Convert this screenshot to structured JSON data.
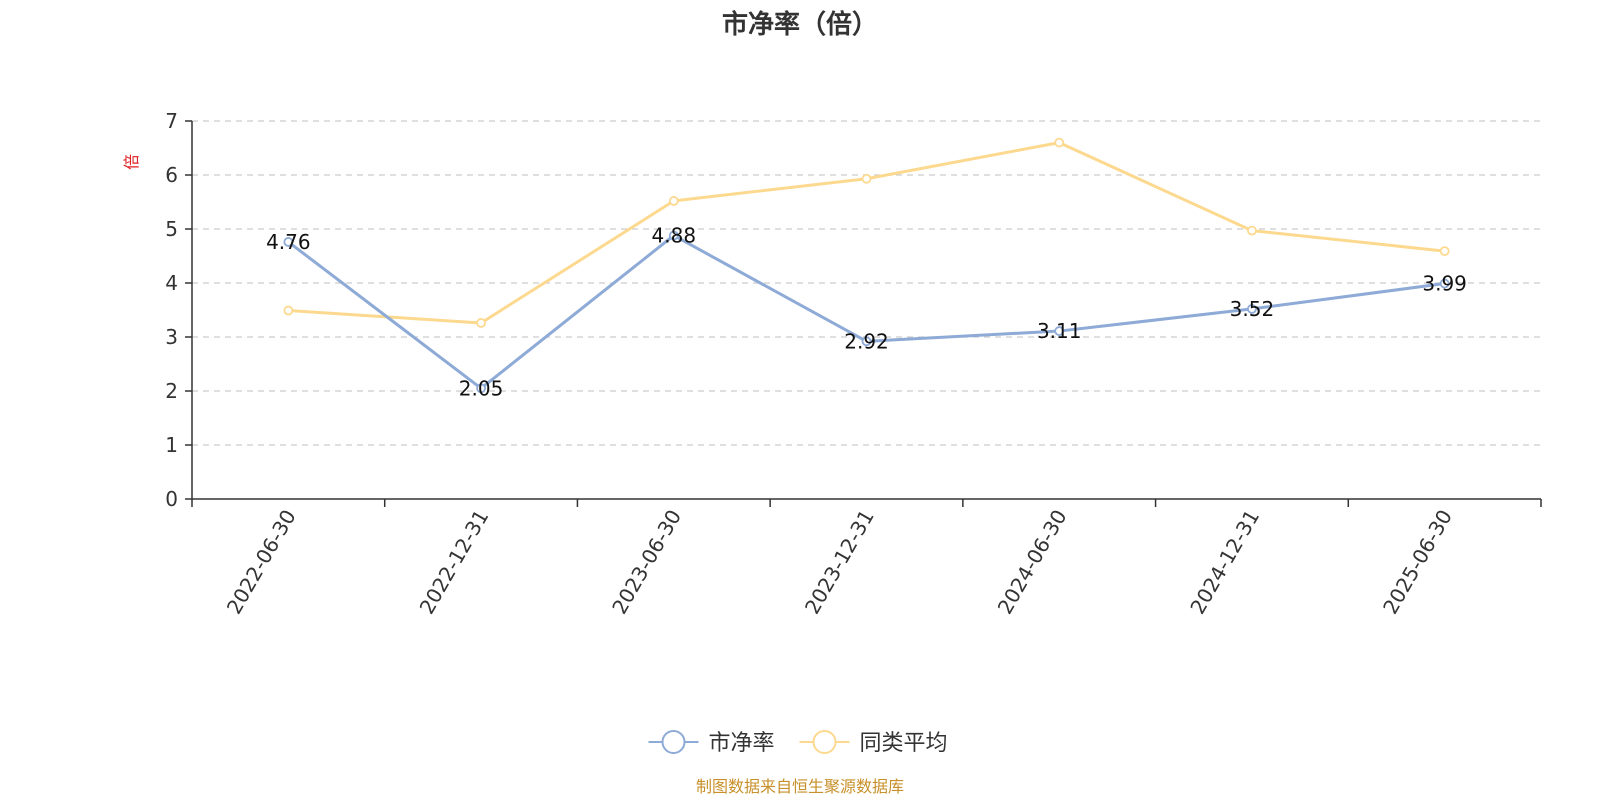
{
  "chart_data": {
    "type": "line",
    "title": "市净率（倍）",
    "ylabel": "倍",
    "categories": [
      "2022-06-30",
      "2022-12-31",
      "2023-06-30",
      "2023-12-31",
      "2024-06-30",
      "2024-12-31",
      "2025-06-30"
    ],
    "ylim": [
      0,
      7
    ],
    "yticks": [
      0,
      1,
      2,
      3,
      4,
      5,
      6,
      7
    ],
    "grid": true,
    "legend_position": "bottom-center",
    "series": [
      {
        "name": "市净率",
        "values": [
          4.76,
          2.05,
          4.88,
          2.92,
          3.11,
          3.52,
          3.99
        ],
        "color": "#8eaad6",
        "show_labels": true
      },
      {
        "name": "同类平均",
        "values": [
          3.49,
          3.26,
          5.52,
          5.93,
          6.6,
          4.97,
          4.59
        ],
        "color": "#fcd98f",
        "show_labels": false
      }
    ],
    "source": "制图数据来自恒生聚源数据库",
    "colors": {
      "axis": "#333333",
      "grid": "#cccccc",
      "unit": "#e02020",
      "source": "#c8902a"
    }
  }
}
